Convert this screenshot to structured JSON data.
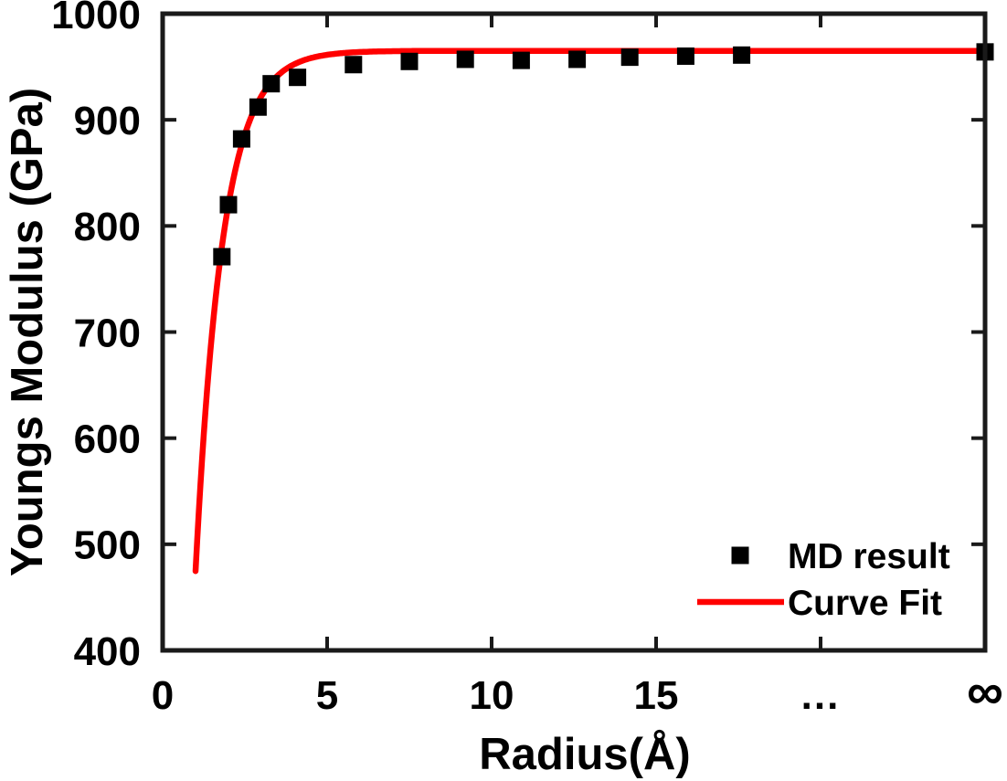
{
  "figure": {
    "background": "#ffffff",
    "frame_color": "#1a1a1a",
    "text_color": "#000000"
  },
  "chart_data": {
    "type": "scatter",
    "title": "",
    "xlabel": "Radius(Å)",
    "ylabel": "Youngs Modulus (GPa)",
    "x_unit": "Å",
    "y_unit": "GPa",
    "ylim": [
      400,
      1000
    ],
    "grid": false,
    "box": true,
    "tick_direction": "in",
    "x_axis_note": "axis is broken after ~17.6 Å; '...' marks the break and '∞' sits at the right edge",
    "x_ticks": [
      {
        "pos": 0,
        "label": "0"
      },
      {
        "pos": 5,
        "label": "5"
      },
      {
        "pos": 10,
        "label": "10"
      },
      {
        "pos": 15,
        "label": "15"
      },
      {
        "pos": 20,
        "label": "..."
      },
      {
        "pos": 25,
        "label": "∞"
      }
    ],
    "y_ticks": [
      {
        "value": 400,
        "label": "400"
      },
      {
        "value": 500,
        "label": "500"
      },
      {
        "value": 600,
        "label": "600"
      },
      {
        "value": 700,
        "label": "700"
      },
      {
        "value": 800,
        "label": "800"
      },
      {
        "value": 900,
        "label": "900"
      },
      {
        "value": 1000,
        "label": "1000"
      }
    ],
    "series": [
      {
        "name": "MD result",
        "type": "scatter",
        "marker": "square",
        "marker_size": 19,
        "color": "#000000",
        "points": [
          [
            1.8,
            771
          ],
          [
            2.0,
            820
          ],
          [
            2.4,
            882
          ],
          [
            2.9,
            912
          ],
          [
            3.3,
            934
          ],
          [
            4.1,
            940
          ],
          [
            5.8,
            952
          ],
          [
            7.5,
            955
          ],
          [
            9.2,
            957
          ],
          [
            10.9,
            956
          ],
          [
            12.6,
            957
          ],
          [
            14.2,
            959
          ],
          [
            15.9,
            960
          ],
          [
            17.6,
            961
          ],
          [
            "∞",
            964
          ]
        ]
      },
      {
        "name": "Curve Fit",
        "type": "line",
        "color": "#ff0000",
        "line_width": 6.5,
        "fit": {
          "model": "E(r) = E_inf * (1 - a * exp(-r/b))",
          "E_inf": 965,
          "a": 1.72,
          "b": 0.82,
          "r_start": 1.0,
          "r_end": 25
        }
      }
    ],
    "legend": {
      "position": "lower right",
      "box": false,
      "items": [
        {
          "label": "MD result",
          "swatch": "square-marker",
          "color": "#000000"
        },
        {
          "label": "Curve Fit",
          "swatch": "line",
          "color": "#ff0000"
        }
      ]
    }
  }
}
